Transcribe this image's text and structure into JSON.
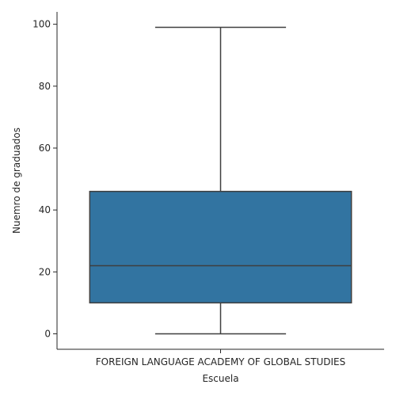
{
  "chart_data": {
    "type": "box",
    "categories": [
      "FOREIGN LANGUAGE ACADEMY OF GLOBAL STUDIES"
    ],
    "boxes": [
      {
        "category": "FOREIGN LANGUAGE ACADEMY OF GLOBAL STUDIES",
        "min": 0,
        "q1": 10,
        "median": 22,
        "q3": 46,
        "max": 99
      }
    ],
    "xlabel": "Escuela",
    "ylabel": "Nuemro de graduados",
    "yticks": [
      0,
      20,
      40,
      60,
      80,
      100
    ],
    "ylim": [
      -5,
      104
    ],
    "grid": false,
    "colors": {
      "box_fill": "#3274a1",
      "line": "#3f3f3f",
      "axis": "#262626"
    }
  }
}
